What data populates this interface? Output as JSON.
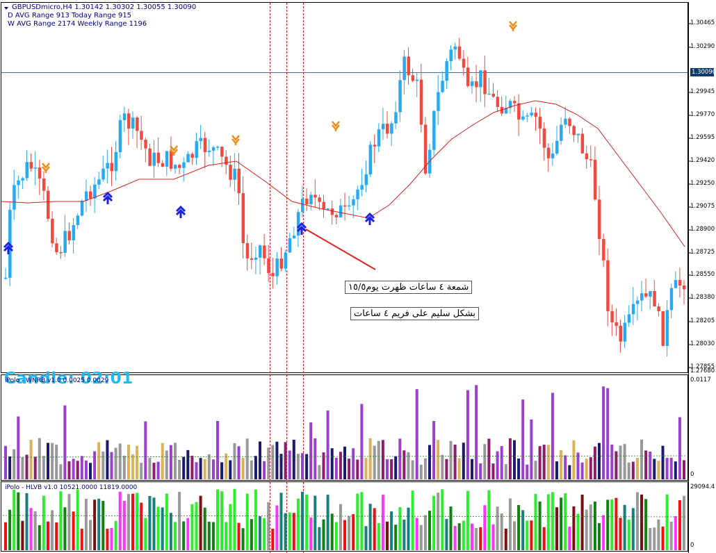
{
  "main_panel": {
    "symbol_line": "GBPUSDmicro,H4  1.30142 1.30302 1.30055 1.30090",
    "daily_line": "D AVG Range 913   Today Range 915",
    "weekly_line": "W AVG Range 2174   Weekly Range 1196",
    "current_price": "1.30090",
    "candle_timer": "Candle:  02:01",
    "price_levels": [
      "1.30465",
      "1.30290",
      "1.29945",
      "1.29770",
      "1.29595",
      "1.29420",
      "1.29250",
      "1.29075",
      "1.28900",
      "1.28725",
      "1.28550",
      "1.28380",
      "1.28205",
      "1.28030",
      "1.27855",
      "1.27680"
    ],
    "annotations": [
      "شمعة ٤ ساعات ظهرت يوم١٥/٥",
      "بشكل سليم على فريم ٤ ساعات"
    ]
  },
  "indicator_1": {
    "title": "iPolo - WNRB v1.0 0.0025 0.0029",
    "max_label": "0.0117",
    "min_label": "0"
  },
  "indicator_2": {
    "title": "iPolo - HLVB v1.0 10521.0000 11819.0000",
    "max_label": "29094.4",
    "min_label": "0"
  },
  "colors": {
    "bull_candle": "#29a9f0",
    "bear_candle": "#f0493f",
    "moving_average": "#d42020",
    "sell_arrow": "#f08a18",
    "buy_arrow": "#1a22e0",
    "vertical_marker": "#e02020",
    "wnrb_palette": [
      "#9b3fce",
      "#8d1d6c",
      "#1b1b6e",
      "#999999",
      "#dbb25a"
    ],
    "hlvb_palette": [
      "#2dee2d",
      "#128012",
      "#16807c",
      "#999999",
      "#ff33ff",
      "#ee1010",
      "#7a1010"
    ]
  }
}
